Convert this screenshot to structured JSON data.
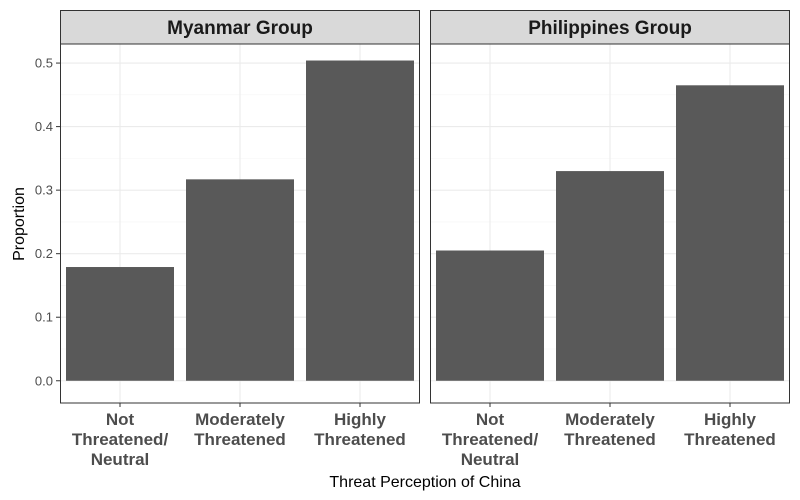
{
  "chart_data": {
    "type": "bar",
    "xlabel": "Threat Perception of China",
    "ylabel": "Proportion",
    "ylim": [
      -0.035,
      0.53
    ],
    "yticks": [
      "0.0",
      "0.1",
      "0.2",
      "0.3",
      "0.4",
      "0.5"
    ],
    "ytick_values": [
      0.0,
      0.1,
      0.2,
      0.3,
      0.4,
      0.5
    ],
    "grid": true,
    "categories": [
      [
        "Not",
        "Threatened/",
        "Neutral"
      ],
      [
        "Moderately",
        "Threatened"
      ],
      [
        "Highly",
        "Threatened"
      ]
    ],
    "panels": [
      {
        "title": "Myanmar Group",
        "values": [
          0.179,
          0.317,
          0.504
        ]
      },
      {
        "title": "Philippines Group",
        "values": [
          0.205,
          0.33,
          0.465
        ]
      }
    ],
    "colors": {
      "bar": "#595959",
      "strip_fill": "#d9d9d9",
      "border": "#333333",
      "grid_major": "#ebebeb",
      "grid_minor": "#f5f5f5"
    }
  }
}
